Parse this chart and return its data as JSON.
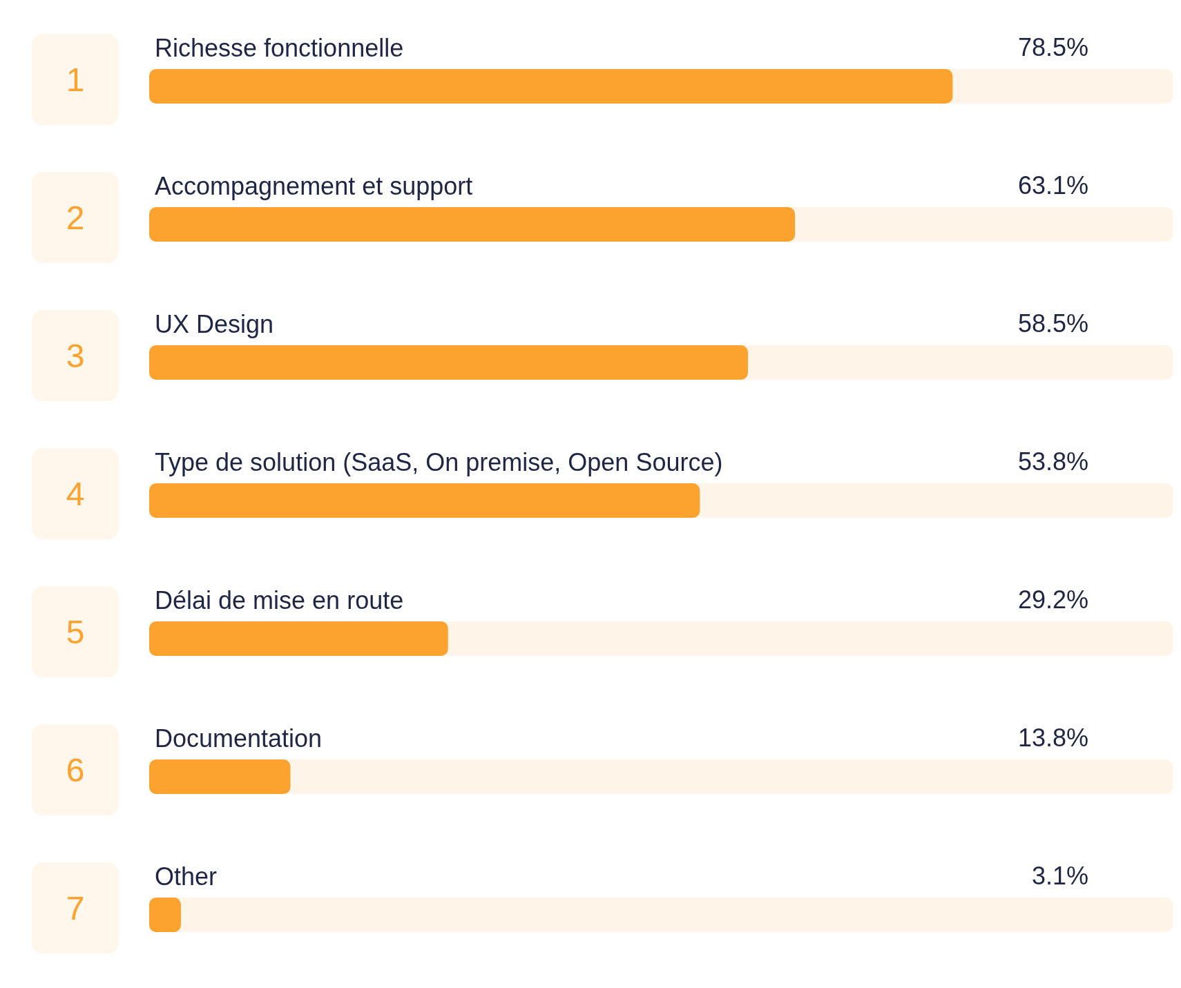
{
  "chart_data": {
    "type": "bar",
    "orientation": "horizontal",
    "categories": [
      "Richesse fonctionnelle",
      "Accompagnement et support",
      "UX Design",
      "Type de solution (SaaS, On premise, Open Source)",
      "Délai de mise en route",
      "Documentation",
      "Other"
    ],
    "values": [
      78.5,
      63.1,
      58.5,
      53.8,
      29.2,
      13.8,
      3.1
    ],
    "value_labels": [
      "78.5%",
      "63.1%",
      "58.5%",
      "53.8%",
      "29.2%",
      "13.8%",
      "3.1%"
    ],
    "color": "#fca22e",
    "xlim": [
      0,
      100
    ],
    "tick_labels": "y",
    "annotations": [
      "1",
      "2",
      "3",
      "4",
      "5",
      "6",
      "7"
    ]
  }
}
